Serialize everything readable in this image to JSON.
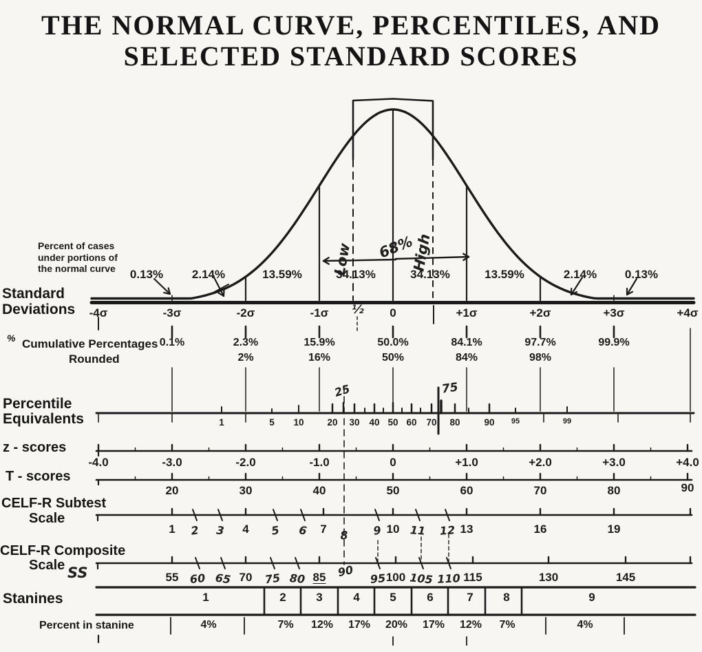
{
  "title": {
    "line1": "THE NORMAL CURVE, PERCENTILES, AND",
    "line2": "SELECTED STANDARD SCORES"
  },
  "curve": {
    "note_line1": "Percent of cases",
    "note_line2": "under portions of",
    "note_line3": "the normal curve",
    "segment_percents": [
      "0.13%",
      "2.14%",
      "13.59%",
      "34.13%",
      "34.13%",
      "13.59%",
      "2.14%",
      "0.13%"
    ],
    "annotations": {
      "low": "Low",
      "high": "High",
      "center_pct": "68%",
      "half": "½",
      "p25": "25",
      "p75": "75"
    }
  },
  "sd": {
    "label_line1": "Standard",
    "label_line2": "Deviations",
    "ticks": [
      "-4σ",
      "-3σ",
      "-2σ",
      "-1σ",
      "0",
      "+1σ",
      "+2σ",
      "+3σ",
      "+4σ"
    ]
  },
  "cumulative": {
    "pct_symbol": "%",
    "label": "Cumulative Percentages",
    "label2": "Rounded",
    "exact": [
      "0.1%",
      "2.3%",
      "15.9%",
      "50.0%",
      "84.1%",
      "97.7%",
      "99.9%"
    ],
    "rounded": [
      "",
      "2%",
      "16%",
      "50%",
      "84%",
      "98%",
      ""
    ]
  },
  "percentile": {
    "label_line1": "Percentile",
    "label_line2": "Equivalents",
    "ticks": [
      "1",
      "5",
      "10",
      "20",
      "30",
      "40",
      "50",
      "60",
      "70",
      "80",
      "90",
      "95",
      "99"
    ]
  },
  "z_scores": {
    "label": "z - scores",
    "ticks": [
      "-4.0",
      "-3.0",
      "-2.0",
      "-1.0",
      "0",
      "+1.0",
      "+2.0",
      "+3.0",
      "+4.0"
    ]
  },
  "t_scores": {
    "label": "T - scores",
    "ticks": [
      "20",
      "30",
      "40",
      "50",
      "60",
      "70",
      "80",
      "90"
    ]
  },
  "subtest": {
    "label_line1": "CELF-R Subtest",
    "label_line2": "Scale",
    "printed": [
      "1",
      "4",
      "7",
      "10",
      "13",
      "16",
      "19"
    ],
    "handwritten": [
      "2",
      "3",
      "5",
      "6",
      "8",
      "9",
      "11",
      "12"
    ]
  },
  "composite": {
    "label_line1": "CELF-R Composite",
    "label_line2": "Scale",
    "ss": "SS",
    "printed": [
      "55",
      "70",
      "85",
      "100",
      "115",
      "130",
      "145"
    ],
    "handwritten": [
      "60",
      "65",
      "75",
      "80",
      "90",
      "95",
      "105",
      "110"
    ]
  },
  "stanines": {
    "label": "Stanines",
    "cells": [
      "1",
      "2",
      "3",
      "4",
      "5",
      "6",
      "7",
      "8",
      "9"
    ],
    "percent_label": "Percent in stanine",
    "percents": [
      "4%",
      "7%",
      "12%",
      "17%",
      "20%",
      "17%",
      "12%",
      "7%",
      "4%"
    ]
  },
  "colors": {
    "ink": "#1b1b1b",
    "paper": "#f7f6f2"
  },
  "chart_data": {
    "type": "area",
    "title": "THE NORMAL CURVE, PERCENTILES, AND SELECTED STANDARD SCORES",
    "distribution": "standard normal curve",
    "sd_axis": [
      -4,
      -3,
      -2,
      -1,
      0,
      1,
      2,
      3,
      4
    ],
    "percent_of_cases_between_sd": [
      0.13,
      2.14,
      13.59,
      34.13,
      34.13,
      13.59,
      2.14,
      0.13
    ],
    "cumulative_pct_exact": {
      "-3": 0.1,
      "-2": 2.3,
      "-1": 15.9,
      "0": 50.0,
      "1": 84.1,
      "2": 97.7,
      "3": 99.9
    },
    "cumulative_pct_rounded": {
      "-2": 2,
      "-1": 16,
      "0": 50,
      "1": 84,
      "2": 98
    },
    "percentile_ticks": [
      1,
      5,
      10,
      20,
      30,
      40,
      50,
      60,
      70,
      80,
      90,
      95,
      99
    ],
    "z_scores": [
      -4.0,
      -3.0,
      -2.0,
      -1.0,
      0,
      1.0,
      2.0,
      3.0,
      4.0
    ],
    "t_scores": [
      20,
      30,
      40,
      50,
      60,
      70,
      80,
      90
    ],
    "celf_r_subtest_scale": [
      1,
      4,
      7,
      10,
      13,
      16,
      19
    ],
    "celf_r_composite_scale": [
      55,
      70,
      85,
      100,
      115,
      130,
      145
    ],
    "stanines": [
      1,
      2,
      3,
      4,
      5,
      6,
      7,
      8,
      9
    ],
    "stanine_percents": [
      4,
      7,
      12,
      17,
      20,
      17,
      12,
      7,
      4
    ],
    "handwritten_annotations": [
      "Low",
      "High",
      "68%",
      "½",
      "25",
      "75",
      "2",
      "3",
      "5",
      "6",
      "8",
      "9",
      "11",
      "12",
      "60",
      "65",
      "75",
      "80",
      "90",
      "95",
      "105",
      "110",
      "SS"
    ]
  }
}
